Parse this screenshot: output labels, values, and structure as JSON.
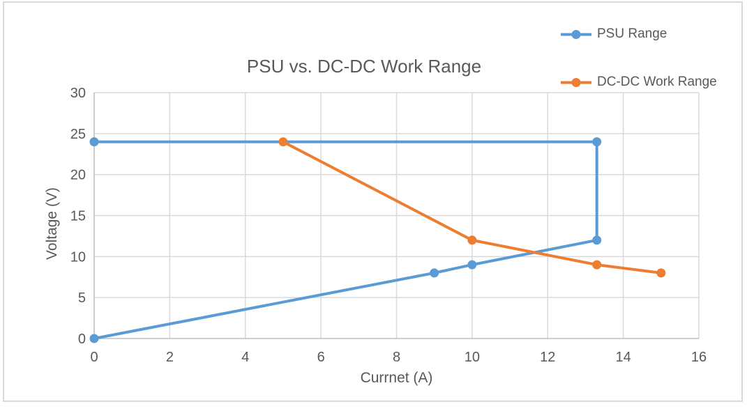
{
  "chart_data": {
    "type": "line",
    "title": "PSU vs. DC-DC Work Range",
    "xlabel": "Currnet (A)",
    "ylabel": "Voltage (V)",
    "xlim": [
      0,
      16
    ],
    "ylim": [
      0,
      30
    ],
    "xticks": [
      0,
      2,
      4,
      6,
      8,
      10,
      12,
      14,
      16
    ],
    "yticks": [
      0,
      5,
      10,
      15,
      20,
      25,
      30
    ],
    "grid": true,
    "legend_position": "top-right",
    "series": [
      {
        "name": "PSU Range",
        "color": "#5B9BD5",
        "marker": "circle",
        "points": [
          [
            0,
            0
          ],
          [
            9,
            8
          ],
          [
            10,
            9
          ],
          [
            13.3,
            12
          ],
          [
            13.3,
            24
          ],
          [
            0,
            24
          ]
        ]
      },
      {
        "name": "DC-DC Work Range",
        "color": "#ED7D31",
        "marker": "circle",
        "points": [
          [
            5,
            24
          ],
          [
            10,
            12
          ],
          [
            13.3,
            9
          ],
          [
            15,
            8
          ]
        ]
      }
    ]
  },
  "colors": {
    "title_text": "#595959",
    "axis_text": "#595959",
    "gridline": "#D9D9D9",
    "axis_line": "#BFBFBF",
    "chart_border": "#D9D9D9",
    "background": "#FFFFFF"
  }
}
